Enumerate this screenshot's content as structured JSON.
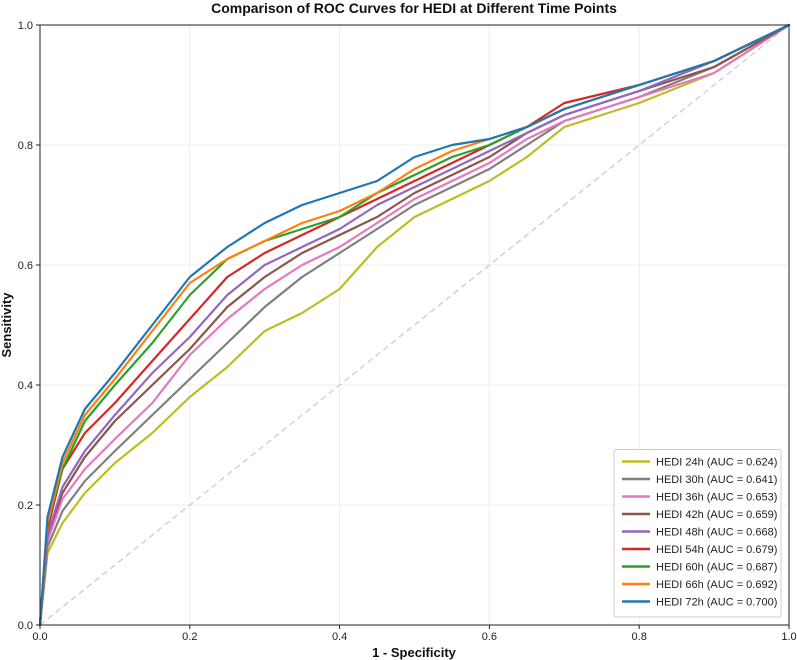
{
  "chart_data": {
    "type": "line",
    "title": "Comparison of ROC Curves for HEDI at Different Time Points",
    "xlabel": "1 - Specificity",
    "ylabel": "Sensitivity",
    "xlim": [
      0.0,
      1.0
    ],
    "ylim": [
      0.0,
      1.0
    ],
    "xticks": [
      "0.0",
      "0.2",
      "0.4",
      "0.6",
      "0.8",
      "1.0"
    ],
    "yticks": [
      "0.0",
      "0.2",
      "0.4",
      "0.6",
      "0.8",
      "1.0"
    ],
    "grid": true,
    "legend_position": "lower-right",
    "reference_line": {
      "x": [
        0,
        1
      ],
      "y": [
        0,
        1
      ],
      "color": "#c8c8c8",
      "style": "dashed"
    },
    "series": [
      {
        "name": "HEDI 24h (AUC = 0.624)",
        "color": "#bcbd22",
        "x": [
          0,
          0.01,
          0.03,
          0.06,
          0.1,
          0.15,
          0.2,
          0.25,
          0.3,
          0.35,
          0.4,
          0.45,
          0.5,
          0.55,
          0.6,
          0.65,
          0.7,
          0.8,
          0.9,
          1.0
        ],
        "y": [
          0,
          0.12,
          0.17,
          0.22,
          0.27,
          0.32,
          0.38,
          0.43,
          0.49,
          0.52,
          0.56,
          0.63,
          0.68,
          0.71,
          0.74,
          0.78,
          0.83,
          0.87,
          0.92,
          1.0
        ]
      },
      {
        "name": "HEDI 30h (AUC = 0.641)",
        "color": "#7f7f7f",
        "x": [
          0,
          0.01,
          0.03,
          0.06,
          0.1,
          0.15,
          0.2,
          0.25,
          0.3,
          0.35,
          0.4,
          0.45,
          0.5,
          0.55,
          0.6,
          0.65,
          0.7,
          0.8,
          0.9,
          1.0
        ],
        "y": [
          0,
          0.13,
          0.19,
          0.24,
          0.29,
          0.35,
          0.41,
          0.47,
          0.53,
          0.58,
          0.62,
          0.66,
          0.7,
          0.73,
          0.76,
          0.8,
          0.84,
          0.88,
          0.93,
          1.0
        ]
      },
      {
        "name": "HEDI 36h (AUC = 0.653)",
        "color": "#e377c2",
        "x": [
          0,
          0.01,
          0.03,
          0.06,
          0.1,
          0.15,
          0.2,
          0.25,
          0.3,
          0.35,
          0.4,
          0.45,
          0.5,
          0.55,
          0.6,
          0.65,
          0.7,
          0.8,
          0.9,
          1.0
        ],
        "y": [
          0,
          0.14,
          0.21,
          0.26,
          0.31,
          0.37,
          0.45,
          0.51,
          0.56,
          0.6,
          0.63,
          0.67,
          0.71,
          0.74,
          0.77,
          0.81,
          0.84,
          0.88,
          0.92,
          1.0
        ]
      },
      {
        "name": "HEDI 42h (AUC = 0.659)",
        "color": "#8c564b",
        "x": [
          0,
          0.01,
          0.03,
          0.06,
          0.1,
          0.15,
          0.2,
          0.25,
          0.3,
          0.35,
          0.4,
          0.45,
          0.5,
          0.55,
          0.6,
          0.65,
          0.7,
          0.8,
          0.9,
          1.0
        ],
        "y": [
          0,
          0.15,
          0.22,
          0.28,
          0.34,
          0.4,
          0.46,
          0.53,
          0.58,
          0.62,
          0.65,
          0.68,
          0.72,
          0.75,
          0.78,
          0.82,
          0.85,
          0.89,
          0.93,
          1.0
        ]
      },
      {
        "name": "HEDI 48h (AUC = 0.668)",
        "color": "#9467bd",
        "x": [
          0,
          0.01,
          0.03,
          0.06,
          0.1,
          0.15,
          0.2,
          0.25,
          0.3,
          0.35,
          0.4,
          0.45,
          0.5,
          0.55,
          0.6,
          0.65,
          0.7,
          0.8,
          0.9,
          1.0
        ],
        "y": [
          0,
          0.15,
          0.23,
          0.29,
          0.35,
          0.42,
          0.48,
          0.55,
          0.6,
          0.63,
          0.66,
          0.7,
          0.73,
          0.76,
          0.79,
          0.82,
          0.85,
          0.89,
          0.94,
          1.0
        ]
      },
      {
        "name": "HEDI 54h (AUC = 0.679)",
        "color": "#d62728",
        "x": [
          0,
          0.01,
          0.03,
          0.06,
          0.1,
          0.15,
          0.2,
          0.25,
          0.3,
          0.35,
          0.4,
          0.45,
          0.5,
          0.55,
          0.6,
          0.65,
          0.7,
          0.8,
          0.9,
          1.0
        ],
        "y": [
          0,
          0.16,
          0.26,
          0.32,
          0.37,
          0.44,
          0.51,
          0.58,
          0.62,
          0.65,
          0.68,
          0.71,
          0.74,
          0.77,
          0.8,
          0.83,
          0.87,
          0.9,
          0.94,
          1.0
        ]
      },
      {
        "name": "HEDI 60h (AUC = 0.687)",
        "color": "#2ca02c",
        "x": [
          0,
          0.01,
          0.03,
          0.06,
          0.1,
          0.15,
          0.2,
          0.25,
          0.3,
          0.35,
          0.4,
          0.45,
          0.5,
          0.55,
          0.6,
          0.65,
          0.7,
          0.8,
          0.9,
          1.0
        ],
        "y": [
          0,
          0.17,
          0.26,
          0.34,
          0.4,
          0.47,
          0.55,
          0.61,
          0.64,
          0.66,
          0.68,
          0.72,
          0.75,
          0.78,
          0.8,
          0.83,
          0.86,
          0.9,
          0.94,
          1.0
        ]
      },
      {
        "name": "HEDI 66h (AUC = 0.692)",
        "color": "#ff7f0e",
        "x": [
          0,
          0.01,
          0.03,
          0.06,
          0.1,
          0.15,
          0.2,
          0.25,
          0.3,
          0.35,
          0.4,
          0.45,
          0.5,
          0.55,
          0.6,
          0.65,
          0.7,
          0.8,
          0.9,
          1.0
        ],
        "y": [
          0,
          0.17,
          0.27,
          0.35,
          0.41,
          0.49,
          0.57,
          0.61,
          0.64,
          0.67,
          0.69,
          0.72,
          0.76,
          0.79,
          0.81,
          0.83,
          0.86,
          0.9,
          0.94,
          1.0
        ]
      },
      {
        "name": "HEDI 72h (AUC = 0.700)",
        "color": "#1f77b4",
        "x": [
          0,
          0.01,
          0.03,
          0.06,
          0.1,
          0.15,
          0.2,
          0.25,
          0.3,
          0.35,
          0.4,
          0.45,
          0.5,
          0.55,
          0.6,
          0.65,
          0.7,
          0.8,
          0.9,
          1.0
        ],
        "y": [
          0,
          0.18,
          0.28,
          0.36,
          0.42,
          0.5,
          0.58,
          0.63,
          0.67,
          0.7,
          0.72,
          0.74,
          0.78,
          0.8,
          0.81,
          0.83,
          0.86,
          0.9,
          0.94,
          1.0
        ]
      }
    ]
  }
}
